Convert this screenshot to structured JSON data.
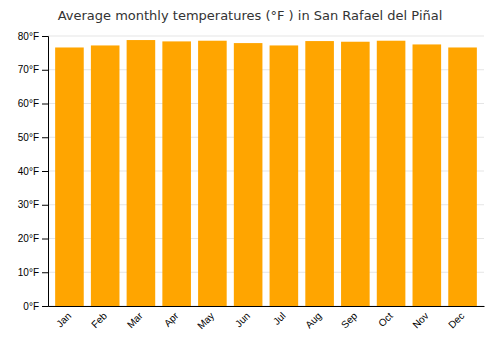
{
  "chart_data": {
    "type": "bar",
    "title": "Average monthly temperatures (°F ) in San Rafael del Piñal",
    "categories": [
      "Jan",
      "Feb",
      "Mar",
      "Apr",
      "May",
      "Jun",
      "Jul",
      "Aug",
      "Sep",
      "Oct",
      "Nov",
      "Dec"
    ],
    "values": [
      76.6,
      77.2,
      78.8,
      78.4,
      78.6,
      77.9,
      77.2,
      78.5,
      78.3,
      78.6,
      77.5,
      76.6
    ],
    "color": "#FFA500",
    "ylim": [
      0,
      80
    ],
    "yticks": [
      {
        "value": 0,
        "label": "0°F"
      },
      {
        "value": 10,
        "label": "10°F"
      },
      {
        "value": 20,
        "label": "20°F"
      },
      {
        "value": 30,
        "label": "30°F"
      },
      {
        "value": 40,
        "label": "40°F"
      },
      {
        "value": 50,
        "label": "50°F"
      },
      {
        "value": 60,
        "label": "60°F"
      },
      {
        "value": 70,
        "label": "70°F"
      },
      {
        "value": 80,
        "label": "80°F"
      }
    ],
    "grid": true
  }
}
